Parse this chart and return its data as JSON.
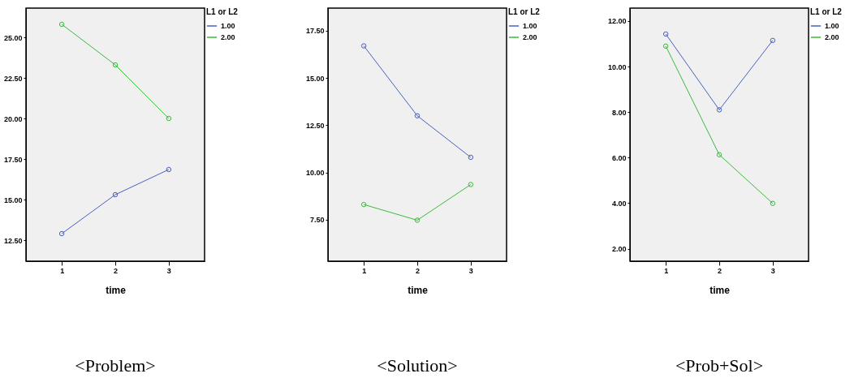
{
  "chart_data": [
    {
      "type": "line",
      "title": "<Problem>",
      "xlabel": "time",
      "legend_title": "L1 or L2",
      "x": [
        1,
        2,
        3
      ],
      "xlim": [
        0.33,
        3.67
      ],
      "xticks": [
        1,
        2,
        3
      ],
      "ylim": [
        11.2,
        26.8
      ],
      "yticks": [
        {
          "value": 12.5,
          "label": "12.50"
        },
        {
          "value": 15,
          "label": "15.00"
        },
        {
          "value": 17.5,
          "label": "17.50"
        },
        {
          "value": 20,
          "label": "20.00"
        },
        {
          "value": 22.5,
          "label": "22.50"
        },
        {
          "value": 25,
          "label": "25.00"
        }
      ],
      "grid": false,
      "legend": "right",
      "marker": "circle",
      "line_style": "solid",
      "series": [
        {
          "name": "1.00",
          "color": "#4a5fc1",
          "values": [
            12.9,
            15.3,
            16.85
          ]
        },
        {
          "name": "2.00",
          "color": "#3cba3c",
          "values": [
            25.8,
            23.3,
            20.0
          ]
        }
      ]
    },
    {
      "type": "line",
      "title": "<Solution>",
      "xlabel": "time",
      "legend_title": "L1 or L2",
      "x": [
        1,
        2,
        3
      ],
      "xlim": [
        0.33,
        3.67
      ],
      "xticks": [
        1,
        2,
        3
      ],
      "ylim": [
        5.3,
        18.7
      ],
      "yticks": [
        {
          "value": 7.5,
          "label": "7.50"
        },
        {
          "value": 10,
          "label": "10.00"
        },
        {
          "value": 12.5,
          "label": "12.50"
        },
        {
          "value": 15,
          "label": "15.00"
        },
        {
          "value": 17.5,
          "label": "17.50"
        }
      ],
      "grid": false,
      "legend": "right",
      "marker": "circle",
      "line_style": "solid",
      "series": [
        {
          "name": "1.00",
          "color": "#4a5fc1",
          "values": [
            16.7,
            13.0,
            10.8
          ]
        },
        {
          "name": "2.00",
          "color": "#3cba3c",
          "values": [
            8.3,
            7.47,
            9.36
          ]
        }
      ]
    },
    {
      "type": "line",
      "title": "<Prob+Sol>",
      "xlabel": "time",
      "legend_title": "L1 or L2",
      "x": [
        1,
        2,
        3
      ],
      "xlim": [
        0.33,
        3.67
      ],
      "xticks": [
        1,
        2,
        3
      ],
      "ylim": [
        1.45,
        12.57
      ],
      "yticks": [
        {
          "value": 2,
          "label": "2.00"
        },
        {
          "value": 4,
          "label": "4.00"
        },
        {
          "value": 6,
          "label": "6.00"
        },
        {
          "value": 8,
          "label": "8.00"
        },
        {
          "value": 10,
          "label": "10.00"
        },
        {
          "value": 12,
          "label": "12.00"
        }
      ],
      "grid": false,
      "legend": "right",
      "marker": "circle",
      "line_style": "solid",
      "series": [
        {
          "name": "1.00",
          "color": "#4a5fc1",
          "values": [
            11.43,
            8.1,
            11.15
          ]
        },
        {
          "name": "2.00",
          "color": "#3cba3c",
          "values": [
            10.9,
            6.13,
            3.99
          ]
        }
      ]
    }
  ]
}
